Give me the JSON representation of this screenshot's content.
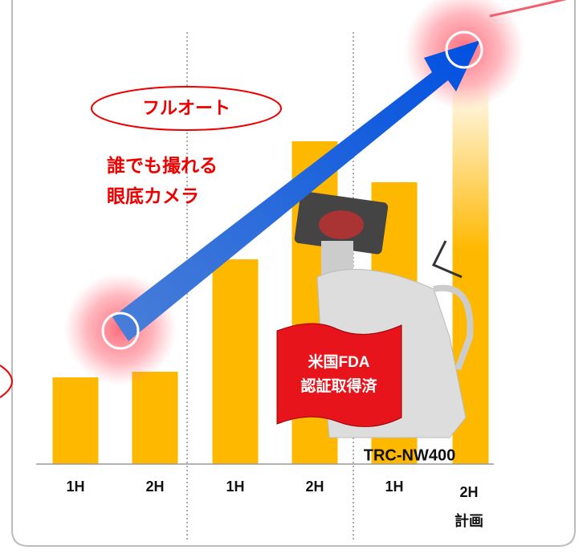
{
  "chart_data": {
    "type": "bar",
    "categories": [
      "1H",
      "2H",
      "1H",
      "2H",
      "1H",
      "2H"
    ],
    "values": [
      108,
      115,
      255,
      402,
      351,
      483
    ],
    "color": "#ffb800",
    "ylim": [
      0,
      560
    ],
    "plan_label": "計画",
    "annotations": {
      "badge": "フルオート",
      "line1": "誰でも撮れる",
      "line2": "眼底カメラ",
      "flag1": "米国FDA",
      "flag2": "認証取得済",
      "model": "TRC-NW400"
    }
  }
}
